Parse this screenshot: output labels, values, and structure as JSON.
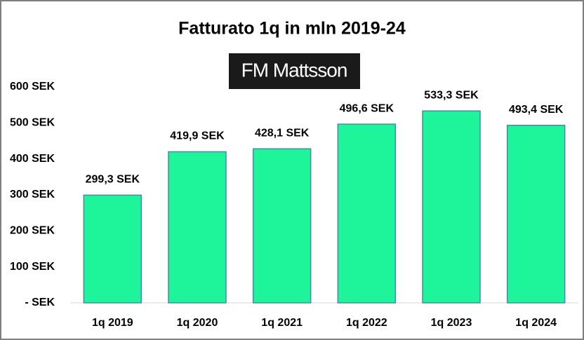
{
  "chart_data": {
    "type": "bar",
    "title": "Fatturato  1q in mln 2019-24",
    "logo": "FM Mattsson",
    "categories": [
      "1q 2019",
      "1q 2020",
      "1q 2021",
      "1q 2022",
      "1q 2023",
      "1q 2024"
    ],
    "values": [
      299.3,
      419.9,
      428.1,
      496.6,
      533.3,
      493.4
    ],
    "value_labels": [
      "299,3 SEK",
      "419,9 SEK",
      "428,1 SEK",
      "496,6 SEK",
      "533,3 SEK",
      "493,4 SEK"
    ],
    "color": "#1ef59a",
    "ylim": [
      0,
      600
    ],
    "yticks": [
      {
        "value": 0,
        "label": "- SEK"
      },
      {
        "value": 100,
        "label": "100 SEK"
      },
      {
        "value": 200,
        "label": "200 SEK"
      },
      {
        "value": 300,
        "label": "300 SEK"
      },
      {
        "value": 400,
        "label": "400 SEK"
      },
      {
        "value": 500,
        "label": "500 SEK"
      },
      {
        "value": 600,
        "label": "600 SEK"
      }
    ],
    "grid": false
  }
}
